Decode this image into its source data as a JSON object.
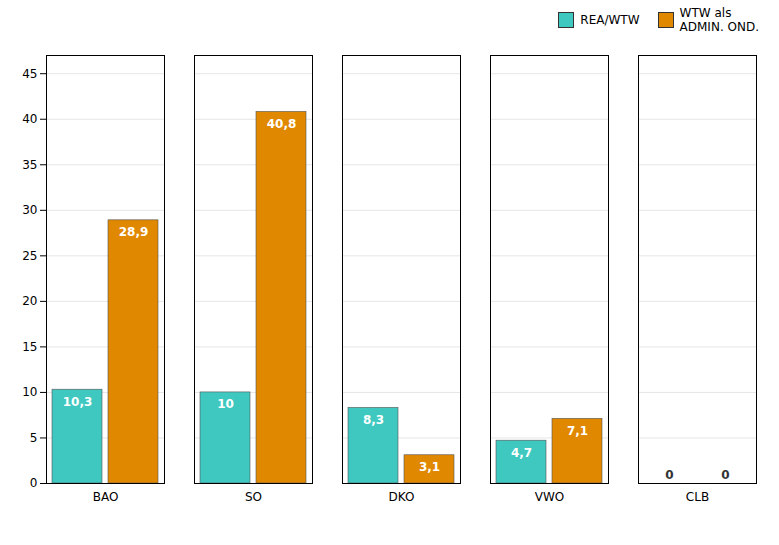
{
  "chart_data": {
    "type": "bar",
    "categories": [
      "BAO",
      "SO",
      "DKO",
      "VWO",
      "CLB"
    ],
    "series": [
      {
        "name": "REA/WTW",
        "color": "#3EC8C0",
        "values": [
          10.3,
          10.0,
          8.3,
          4.7,
          0.0
        ],
        "value_labels": [
          "10,3",
          "10",
          "8,3",
          "4,7",
          "0"
        ]
      },
      {
        "name": "WTW als\nADMIN. OND.",
        "color": "#E08800",
        "values": [
          28.9,
          40.8,
          3.1,
          7.1,
          0.0
        ],
        "value_labels": [
          "28,9",
          "40,8",
          "3,1",
          "7,1",
          "0"
        ]
      }
    ],
    "ylim": [
      0,
      47
    ],
    "yticks": [
      0,
      5,
      10,
      15,
      20,
      25,
      30,
      35,
      40,
      45
    ],
    "grid": true,
    "legend": "upper right",
    "data_labels": true
  }
}
